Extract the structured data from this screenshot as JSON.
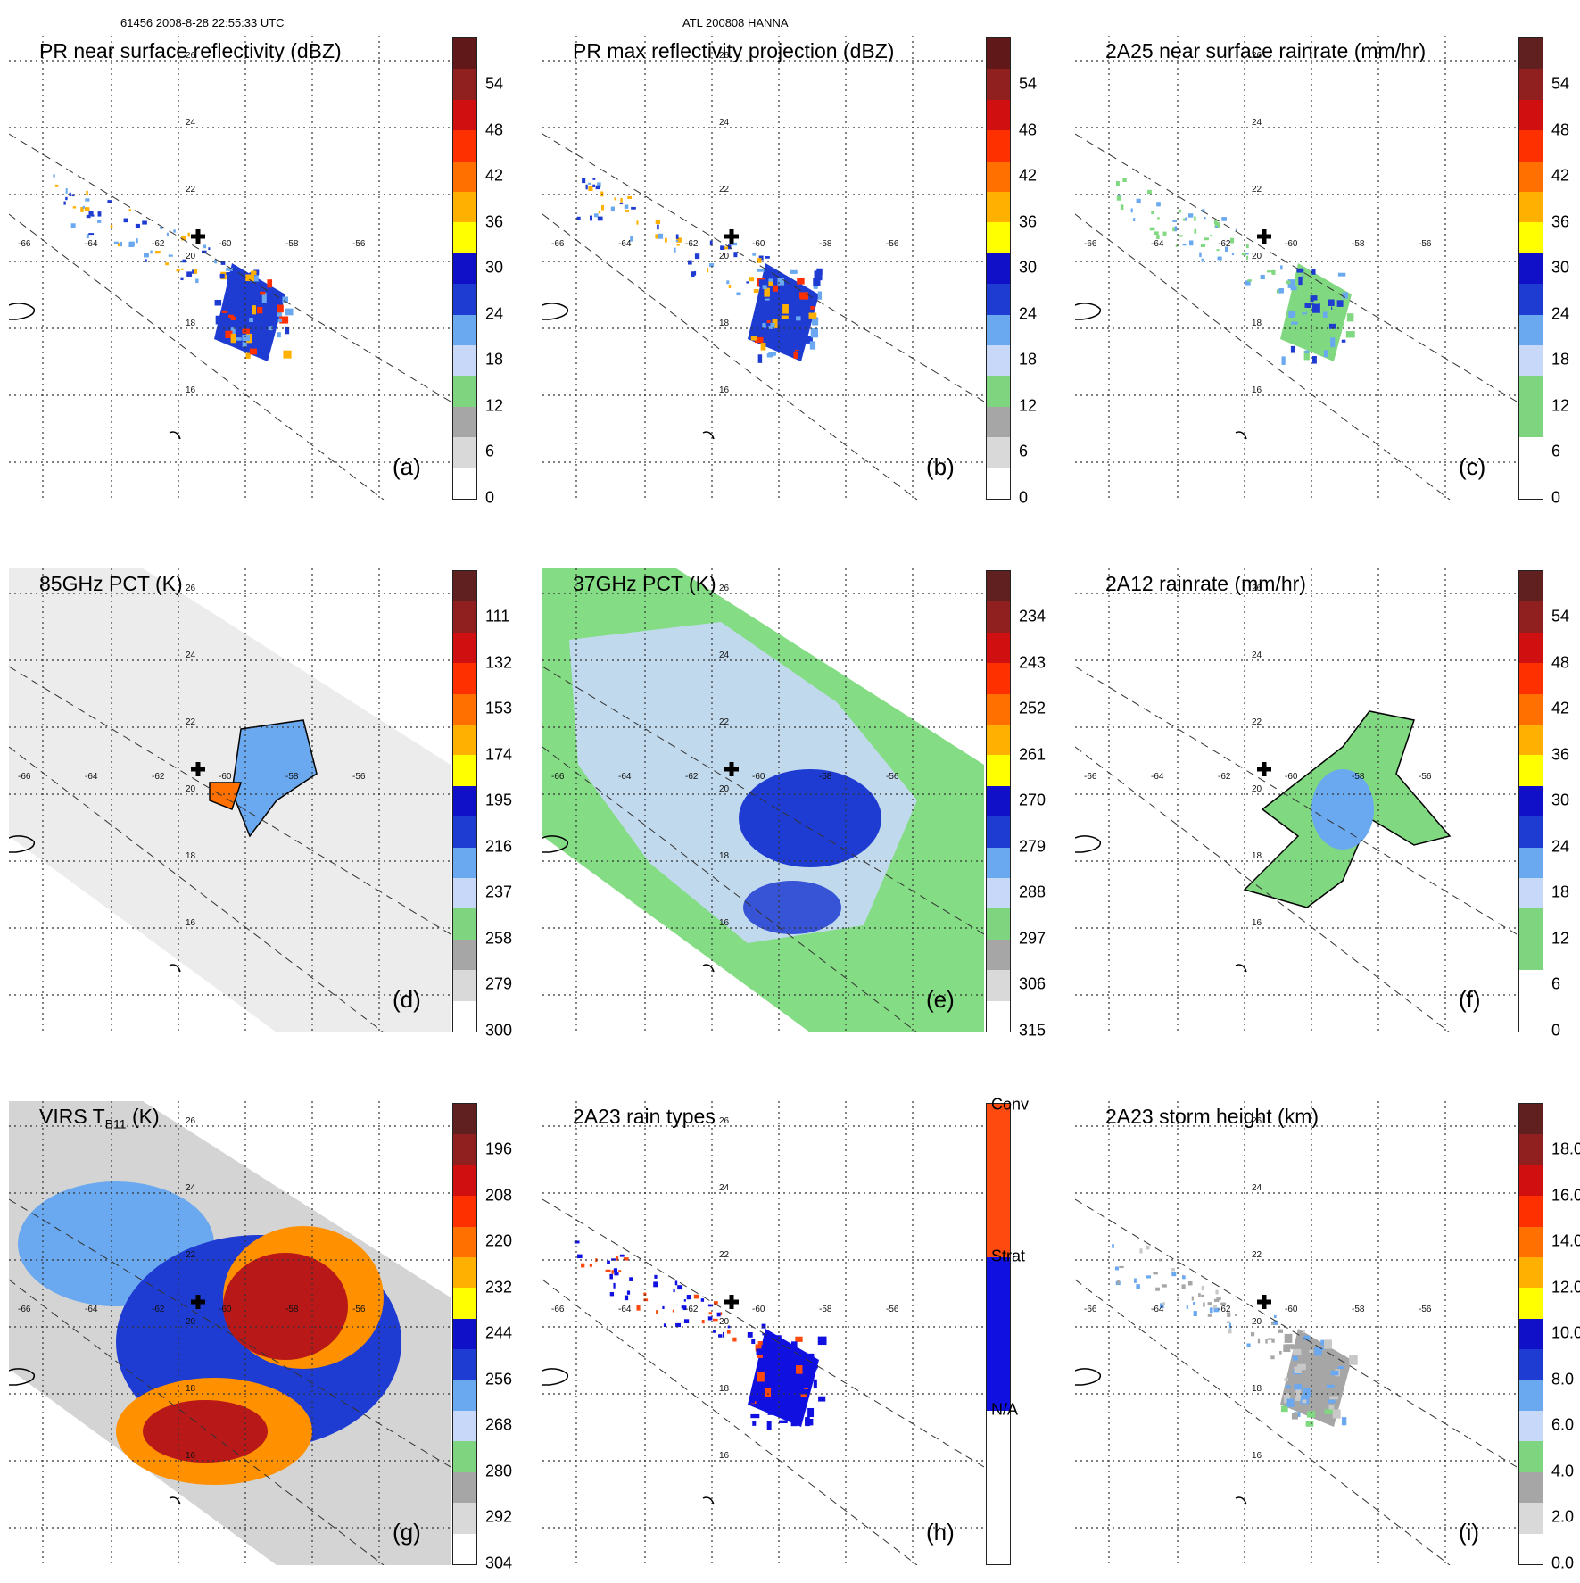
{
  "header": {
    "left": "61456 2008-8-28 22:55:33 UTC",
    "center": "ATL 200808 HANNA"
  },
  "map_axes": {
    "longitude_labels": [
      "-66",
      "-64",
      "-62",
      "-60",
      "-58",
      "-56"
    ],
    "latitude_labels": [
      "26",
      "24",
      "22",
      "20",
      "18",
      "16"
    ]
  },
  "panels": [
    {
      "id": "a",
      "title": "PR near surface reflectivity (dBZ)",
      "label": "(a)",
      "colorbar": {
        "ticks": [
          "54",
          "48",
          "42",
          "36",
          "30",
          "24",
          "18",
          "12",
          "6",
          "0"
        ]
      },
      "field": "pr-swath"
    },
    {
      "id": "b",
      "title": "PR max reflectivity projection (dBZ)",
      "label": "(b)",
      "colorbar": {
        "ticks": [
          "54",
          "48",
          "42",
          "36",
          "30",
          "24",
          "18",
          "12",
          "6",
          "0"
        ]
      },
      "field": "pr-swath"
    },
    {
      "id": "c",
      "title": "2A25 near surface rainrate (mm/hr)",
      "label": "(c)",
      "colorbar": {
        "ticks": [
          "54",
          "48",
          "42",
          "36",
          "30",
          "24",
          "18",
          "12",
          "6",
          "0"
        ]
      },
      "field": "pr-swath"
    },
    {
      "id": "d",
      "title": "85GHz PCT (K)",
      "label": "(d)",
      "colorbar": {
        "ticks": [
          "111",
          "132",
          "153",
          "174",
          "195",
          "216",
          "237",
          "258",
          "279",
          "300"
        ]
      },
      "field": "tmi-swath"
    },
    {
      "id": "e",
      "title": "37GHz PCT (K)",
      "label": "(e)",
      "colorbar": {
        "ticks": [
          "234",
          "243",
          "252",
          "261",
          "270",
          "279",
          "288",
          "297",
          "306",
          "315"
        ]
      },
      "field": "tmi-swath-green"
    },
    {
      "id": "f",
      "title": "2A12 rainrate (mm/hr)",
      "label": "(f)",
      "colorbar": {
        "ticks": [
          "54",
          "48",
          "42",
          "36",
          "30",
          "24",
          "18",
          "12",
          "6",
          "0"
        ]
      },
      "field": "rain-area"
    },
    {
      "id": "g",
      "title_main": "VIRS T",
      "title_sub": "B11",
      "title_tail": " (K)",
      "label": "(g)",
      "colorbar": {
        "ticks": [
          "196",
          "208",
          "220",
          "232",
          "244",
          "256",
          "268",
          "280",
          "292",
          "304"
        ]
      },
      "field": "virs-swath"
    },
    {
      "id": "h",
      "title": "2A23 rain types",
      "label": "(h)",
      "colorbar": {
        "ticks": [
          "Conv",
          "Strat",
          "N/A"
        ]
      },
      "field": "pr-swath"
    },
    {
      "id": "i",
      "title": "2A23 storm height (km)",
      "label": "(i)",
      "colorbar": {
        "ticks": [
          "18.0",
          "16.0",
          "14.0",
          "12.0",
          "10.0",
          "8.0",
          "6.0",
          "4.0",
          "2.0",
          "0.0"
        ]
      },
      "field": "pr-swath"
    }
  ],
  "colors": {
    "dbz_scale": [
      "#ffffff",
      "#d9d9d9",
      "#a6a6a6",
      "#7fd47f",
      "#c8d8f8",
      "#6aa8f0",
      "#1e3cd2",
      "#1010c8",
      "#ffff00",
      "#ffb000",
      "#ff7000",
      "#ff3000",
      "#d01010",
      "#902020",
      "#601818"
    ],
    "rain_types": {
      "conv": "#ff4a0f",
      "strat": "#1010e0",
      "na": "#ffffff"
    },
    "land_green": "#80d880"
  }
}
